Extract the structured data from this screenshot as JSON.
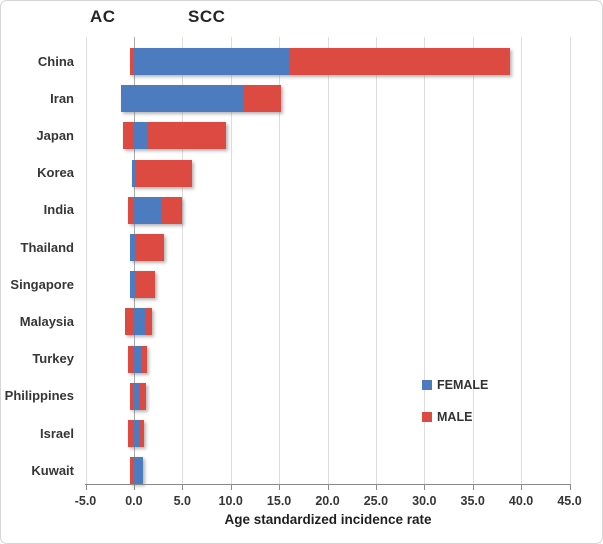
{
  "chart_data": {
    "type": "bar",
    "orientation": "horizontal",
    "stacked": true,
    "group_labels": [
      {
        "text": "AC"
      },
      {
        "text": "SCC"
      }
    ],
    "xlabel": "Age standardized incidence rate",
    "xlim": [
      -5,
      45
    ],
    "grid": true,
    "legend_position": "inside-right",
    "xticks": [
      {
        "value": -5,
        "label": "-5.0"
      },
      {
        "value": 0,
        "label": "0.0"
      },
      {
        "value": 5,
        "label": "5.0"
      },
      {
        "value": 10,
        "label": "10.0"
      },
      {
        "value": 15,
        "label": "15.0"
      },
      {
        "value": 20,
        "label": "20.0"
      },
      {
        "value": 25,
        "label": "25.0"
      },
      {
        "value": 30,
        "label": "30.0"
      },
      {
        "value": 35,
        "label": "35.0"
      },
      {
        "value": 40,
        "label": "40.0"
      },
      {
        "value": 45,
        "label": "45.0"
      }
    ],
    "legend": [
      {
        "name": "FEMALE",
        "color": "#4c7cbf"
      },
      {
        "name": "MALE",
        "color": "#dc4a41"
      }
    ],
    "series_colors": {
      "FEMALE": "#4c7cbf",
      "MALE": "#dc4a41"
    },
    "countries": [
      {
        "name": "China",
        "segments": [
          {
            "series": "MALE",
            "start": -0.45,
            "end": 0
          },
          {
            "series": "FEMALE",
            "start": 0,
            "end": 16.0
          },
          {
            "series": "MALE",
            "start": 16.0,
            "end": 38.9
          }
        ]
      },
      {
        "name": "Iran",
        "segments": [
          {
            "series": "FEMALE",
            "start": -1.35,
            "end": 11.4
          },
          {
            "series": "MALE",
            "start": 11.4,
            "end": 15.2
          }
        ]
      },
      {
        "name": "Japan",
        "segments": [
          {
            "series": "MALE",
            "start": -1.1,
            "end": 0
          },
          {
            "series": "FEMALE",
            "start": 0,
            "end": 1.35
          },
          {
            "series": "MALE",
            "start": 1.35,
            "end": 9.5
          }
        ]
      },
      {
        "name": "Korea",
        "segments": [
          {
            "series": "FEMALE",
            "start": -0.2,
            "end": 0.25
          },
          {
            "series": "MALE",
            "start": 0.25,
            "end": 6.0
          }
        ]
      },
      {
        "name": "India",
        "segments": [
          {
            "series": "MALE",
            "start": -0.65,
            "end": 0
          },
          {
            "series": "FEMALE",
            "start": 0,
            "end": 2.9
          },
          {
            "series": "MALE",
            "start": 2.9,
            "end": 5.0
          }
        ]
      },
      {
        "name": "Thailand",
        "segments": [
          {
            "series": "FEMALE",
            "start": -0.45,
            "end": 0.2
          },
          {
            "series": "MALE",
            "start": 0.2,
            "end": 3.1
          }
        ]
      },
      {
        "name": "Singapore",
        "segments": [
          {
            "series": "FEMALE",
            "start": -0.45,
            "end": 0.2
          },
          {
            "series": "MALE",
            "start": 0.2,
            "end": 2.15
          }
        ]
      },
      {
        "name": "Malaysia",
        "segments": [
          {
            "series": "MALE",
            "start": -0.9,
            "end": 0
          },
          {
            "series": "FEMALE",
            "start": 0,
            "end": 1.25
          },
          {
            "series": "MALE",
            "start": 1.25,
            "end": 1.9
          }
        ]
      },
      {
        "name": "Turkey",
        "segments": [
          {
            "series": "MALE",
            "start": -0.6,
            "end": 0
          },
          {
            "series": "FEMALE",
            "start": 0,
            "end": 0.7
          },
          {
            "series": "MALE",
            "start": 0.7,
            "end": 1.4
          }
        ]
      },
      {
        "name": "Philippines",
        "segments": [
          {
            "series": "MALE",
            "start": -0.45,
            "end": 0
          },
          {
            "series": "FEMALE",
            "start": 0,
            "end": 0.6
          },
          {
            "series": "MALE",
            "start": 0.6,
            "end": 1.25
          }
        ]
      },
      {
        "name": "Israel",
        "segments": [
          {
            "series": "MALE",
            "start": -0.6,
            "end": 0
          },
          {
            "series": "FEMALE",
            "start": 0,
            "end": 0.65
          },
          {
            "series": "MALE",
            "start": 0.65,
            "end": 1.05
          }
        ]
      },
      {
        "name": "Kuwait",
        "segments": [
          {
            "series": "MALE",
            "start": -0.45,
            "end": 0
          },
          {
            "series": "FEMALE",
            "start": 0,
            "end": 0.9
          }
        ]
      }
    ]
  }
}
